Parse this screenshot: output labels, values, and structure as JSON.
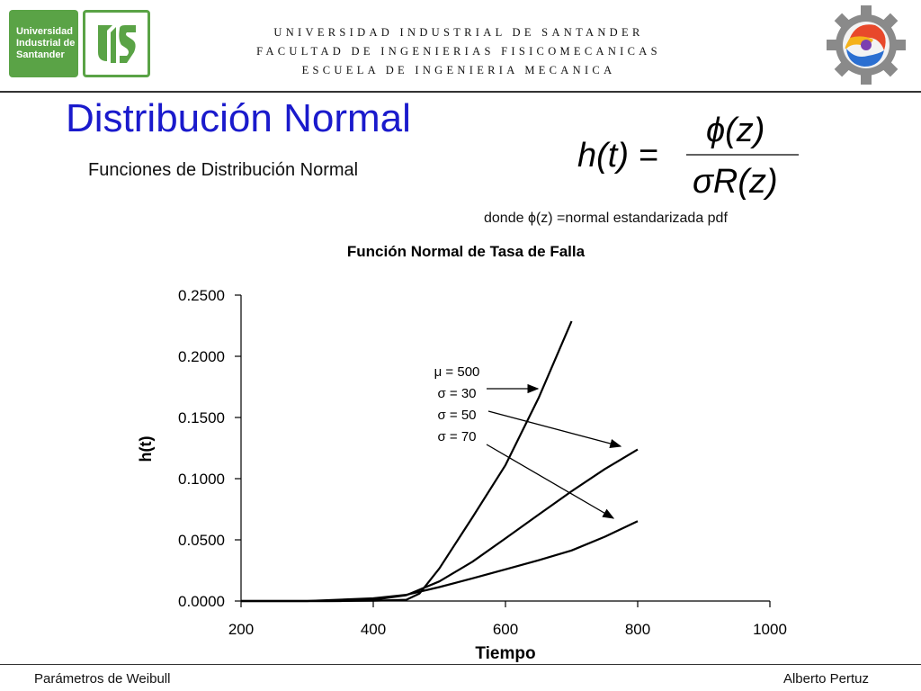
{
  "header": {
    "logo_text_lines": [
      "Universidad",
      "Industrial de",
      "Santander"
    ],
    "institution_lines": [
      "UNIVERSIDAD INDUSTRIAL DE SANTANDER",
      "FACULTAD DE INGENIERIAS FISICOMECANICAS",
      "ESCUELA DE INGENIERIA MECANICA"
    ]
  },
  "slide": {
    "title": "Distribución Normal",
    "subtitle": "Funciones de Distribución Normal",
    "formula_lhs": "h(t) =",
    "formula_numerator": "ϕ(z)",
    "formula_denominator": "σR(z)",
    "formula_note": "donde ϕ(z) =normal estandarizada pdf"
  },
  "footer": {
    "left": "Parámetros de Weibull",
    "right": "Alberto Pertuz"
  },
  "colors": {
    "title": "#1a1acc",
    "logo_green": "#5aa346",
    "series": "#000000"
  },
  "chart_data": {
    "type": "line",
    "title": "Función Normal de Tasa de Falla",
    "xlabel": "Tiempo",
    "ylabel": "h(t)",
    "xlim": [
      200,
      1000
    ],
    "ylim": [
      0,
      0.25
    ],
    "x_ticks": [
      "200",
      "400",
      "600",
      "800",
      "1000"
    ],
    "y_ticks": [
      "0.0000",
      "0.0500",
      "0.1000",
      "0.1500",
      "0.2000",
      "0.2500"
    ],
    "grid": false,
    "annotation_lines": [
      "μ = 500",
      "σ = 30",
      "σ = 50",
      "σ = 70"
    ],
    "series": [
      {
        "x": [
          200,
          330,
          400,
          450,
          470,
          500,
          550,
          600,
          650,
          700
        ],
        "values": [
          0,
          0,
          0.0002,
          0.001,
          0.0062,
          0.0266,
          0.0684,
          0.1111,
          0.1659,
          0.2287
        ]
      },
      {
        "x": [
          200,
          350,
          400,
          450,
          500,
          550,
          600,
          650,
          700,
          750,
          800
        ],
        "values": [
          0,
          0,
          0.001,
          0.0048,
          0.016,
          0.0321,
          0.0512,
          0.0706,
          0.0897,
          0.1078,
          0.1238
        ]
      },
      {
        "x": [
          200,
          300,
          400,
          450,
          500,
          550,
          600,
          650,
          700,
          750,
          800
        ],
        "values": [
          0,
          0,
          0.0022,
          0.0051,
          0.0114,
          0.0185,
          0.0259,
          0.0333,
          0.0413,
          0.0525,
          0.0653
        ]
      }
    ]
  }
}
